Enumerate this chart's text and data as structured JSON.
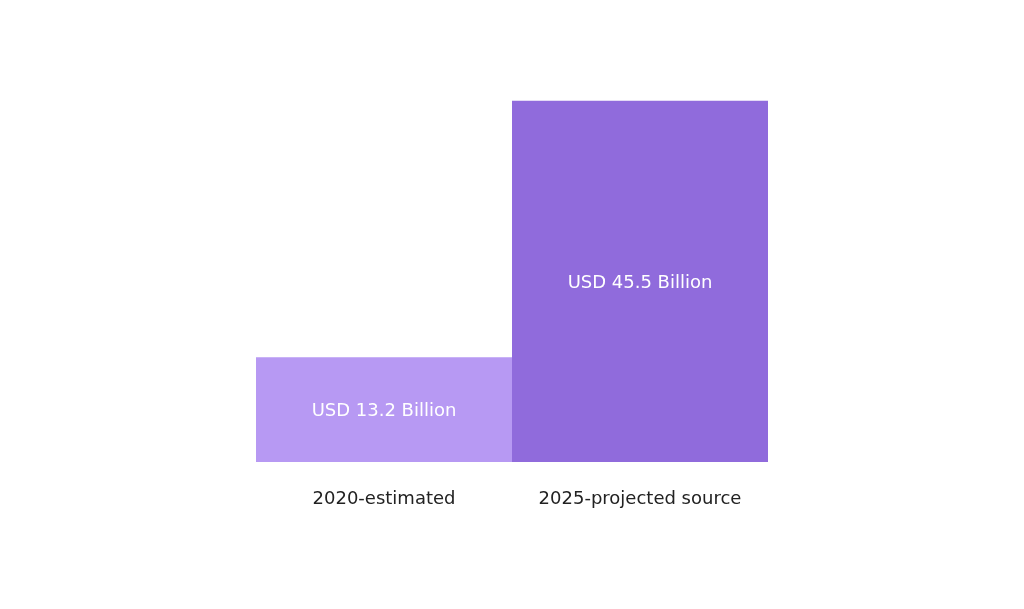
{
  "chart_data": {
    "type": "bar",
    "categories": [
      "2020-estimated",
      "2025-projected source"
    ],
    "values": [
      13.2,
      45.5
    ],
    "colors": [
      "#b799f3",
      "#906bdc"
    ],
    "value_labels": [
      "USD 13.2 Billion",
      "USD 45.5 Billion"
    ]
  }
}
